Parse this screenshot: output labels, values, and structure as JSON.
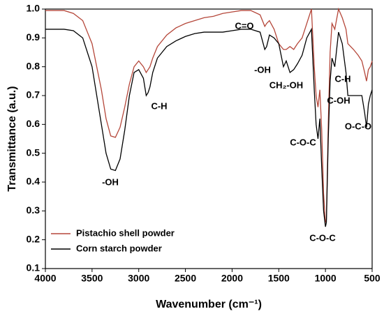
{
  "chart_data": {
    "type": "line",
    "xlabel": "Wavenumber (cm⁻¹)",
    "ylabel": "Transmittance (a.u.)",
    "x": [
      4000,
      3800,
      3700,
      3600,
      3500,
      3400,
      3350,
      3300,
      3250,
      3200,
      3150,
      3100,
      3050,
      3000,
      2950,
      2920,
      2900,
      2880,
      2850,
      2800,
      2700,
      2600,
      2500,
      2400,
      2300,
      2200,
      2100,
      2000,
      1900,
      1800,
      1700,
      1650,
      1630,
      1600,
      1550,
      1500,
      1450,
      1420,
      1380,
      1340,
      1300,
      1250,
      1200,
      1150,
      1120,
      1100,
      1080,
      1060,
      1040,
      1020,
      1000,
      990,
      970,
      950,
      930,
      900,
      860,
      820,
      780,
      760,
      700,
      650,
      610,
      580,
      560,
      540,
      520,
      500
    ],
    "series": [
      {
        "name": "Pistachio shell powder",
        "color": "#b5473a",
        "values": [
          0.995,
          0.995,
          0.985,
          0.96,
          0.88,
          0.72,
          0.62,
          0.56,
          0.555,
          0.59,
          0.66,
          0.74,
          0.8,
          0.82,
          0.8,
          0.78,
          0.79,
          0.8,
          0.83,
          0.87,
          0.91,
          0.935,
          0.95,
          0.96,
          0.97,
          0.975,
          0.985,
          0.99,
          0.995,
          0.995,
          0.98,
          0.94,
          0.95,
          0.96,
          0.93,
          0.88,
          0.86,
          0.86,
          0.87,
          0.86,
          0.88,
          0.9,
          0.95,
          1.0,
          0.8,
          0.7,
          0.66,
          0.72,
          0.58,
          0.36,
          0.26,
          0.27,
          0.6,
          0.85,
          0.95,
          0.93,
          1.0,
          0.97,
          0.93,
          0.88,
          0.86,
          0.84,
          0.82,
          0.78,
          0.75,
          0.79,
          0.8,
          0.82
        ]
      },
      {
        "name": "Corn starch powder",
        "color": "#000000",
        "values": [
          0.93,
          0.93,
          0.925,
          0.9,
          0.8,
          0.6,
          0.5,
          0.445,
          0.44,
          0.48,
          0.58,
          0.7,
          0.78,
          0.79,
          0.76,
          0.7,
          0.71,
          0.73,
          0.78,
          0.83,
          0.87,
          0.89,
          0.905,
          0.915,
          0.92,
          0.92,
          0.92,
          0.925,
          0.93,
          0.93,
          0.92,
          0.86,
          0.87,
          0.91,
          0.9,
          0.88,
          0.8,
          0.82,
          0.78,
          0.79,
          0.81,
          0.84,
          0.9,
          0.93,
          0.72,
          0.6,
          0.55,
          0.62,
          0.45,
          0.3,
          0.245,
          0.26,
          0.55,
          0.75,
          0.83,
          0.8,
          0.92,
          0.88,
          0.78,
          0.7,
          0.7,
          0.7,
          0.7,
          0.64,
          0.59,
          0.67,
          0.7,
          0.72
        ]
      }
    ],
    "xlim": [
      4000,
      500
    ],
    "xticks": [
      4000,
      3500,
      3000,
      2500,
      2000,
      1500,
      1000,
      500
    ],
    "ylim": [
      0.1,
      1.0
    ],
    "yticks": [
      0.1,
      0.2,
      0.3,
      0.4,
      0.5,
      0.6,
      0.7,
      0.8,
      0.9,
      {
        "value": 1.0,
        "label": "1.0"
      }
    ],
    "legend": "lower left",
    "annotations": [
      "-OH",
      "C-H",
      "C=O",
      "-OH",
      "CH₂-OH",
      "C-O-C",
      "C-H",
      "C-OH",
      "O-C-O",
      "C-O-C"
    ]
  }
}
